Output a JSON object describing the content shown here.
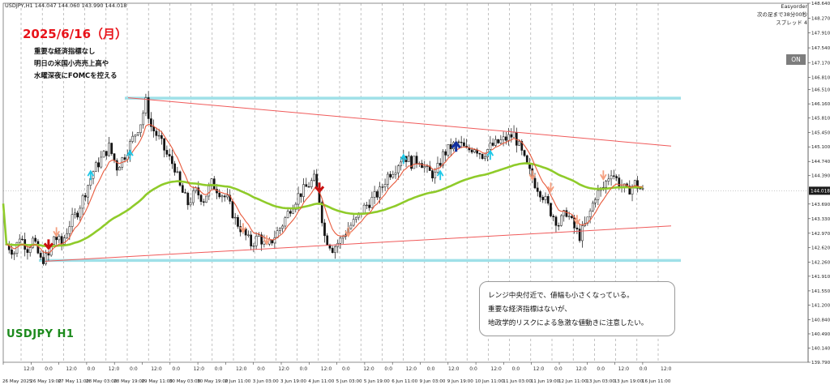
{
  "chart_data": {
    "type": "candlestick",
    "symbol_header": "USDJPY,H1  144.047 144.060 143.990 144.018",
    "heading": "2025/6/16（月）",
    "memo": [
      "重要な経済指標なし",
      "明日の米国小売売上高や",
      "水曜深夜にFOMCを控える"
    ],
    "symbol_label": "USDJPY H1",
    "note": [
      "レンジ中央付近で、値幅も小さくなっている。",
      "重要な経済指標はないが、",
      "地政学的リスクによる急激な値動きに注意したい。"
    ],
    "ea_label": "Easyorder",
    "ea_lines": [
      "次の足まで38分00秒",
      "スプレッド 4"
    ],
    "on_label": "ON",
    "current_price": "144.018",
    "ylim": [
      139.79,
      148.64
    ],
    "y_ticks": [
      "148.640",
      "148.270",
      "147.910",
      "147.540",
      "147.170",
      "146.810",
      "146.510",
      "146.160",
      "145.810",
      "145.450",
      "145.100",
      "144.740",
      "144.390",
      "144.018",
      "143.690",
      "143.330",
      "142.970",
      "142.620",
      "142.260",
      "141.910",
      "141.550",
      "141.200",
      "140.840",
      "140.490",
      "140.140",
      "139.790"
    ],
    "x_labels": [
      "26 May 2025",
      "26 May 19:00",
      "27 May 11:00",
      "28 May 03:00",
      "28 May 19:00",
      "29 May 11:00",
      "30 May 03:00",
      "30 May 19:00",
      "2 Jun 11:00",
      "3 Jun 03:00",
      "3 Jun 19:00",
      "4 Jun 11:00",
      "5 Jun 03:00",
      "5 Jun 19:00",
      "6 Jun 11:00",
      "9 Jun 03:00",
      "9 Jun 19:00",
      "10 Jun 11:00",
      "11 Jun 03:00",
      "11 Jun 19:00",
      "12 Jun 11:00",
      "13 Jun 03:00",
      "13 Jun 19:00",
      "16 Jun 11:00"
    ],
    "sep_labels": [
      "12:0",
      "0:0",
      "12:0",
      "0:0",
      "12:0",
      "0:0",
      "12:0",
      "0:0",
      "12:0",
      "0:0",
      "12:0",
      "0:0",
      "12:0",
      "0:0",
      "12:0",
      "0:0",
      "12:0",
      "0:0",
      "12:0",
      "0:0",
      "12:0",
      "0:0",
      "12:0",
      "0:0",
      "12:0",
      "0:0",
      "12:0",
      "0:0",
      "12:0",
      "0:0",
      "12:0"
    ],
    "levels": [
      146.3,
      142.3
    ],
    "trendlines": [
      {
        "from": [
          "28 May 19:00",
          146.31
        ],
        "to": [
          "16 Jun 12:00",
          145.12
        ]
      },
      {
        "from": [
          "26 May 19:00",
          142.28
        ],
        "to": [
          "16 Jun 12:00",
          143.15
        ]
      }
    ],
    "close_path": [
      [
        0,
        142.7
      ],
      [
        3,
        142.5
      ],
      [
        5,
        142.9
      ],
      [
        8,
        142.6
      ],
      [
        10,
        142.8
      ],
      [
        13,
        142.3
      ],
      [
        16,
        142.4
      ],
      [
        18,
        142.9
      ],
      [
        21,
        142.7
      ],
      [
        24,
        143.2
      ],
      [
        27,
        143.5
      ],
      [
        30,
        144.0
      ],
      [
        33,
        144.5
      ],
      [
        36,
        144.8
      ],
      [
        39,
        145.1
      ],
      [
        42,
        144.6
      ],
      [
        45,
        144.9
      ],
      [
        48,
        145.3
      ],
      [
        51,
        145.7
      ],
      [
        53,
        146.2
      ],
      [
        55,
        145.6
      ],
      [
        58,
        145.3
      ],
      [
        61,
        144.9
      ],
      [
        64,
        144.6
      ],
      [
        66,
        144.1
      ],
      [
        69,
        143.7
      ],
      [
        72,
        144.0
      ],
      [
        75,
        143.8
      ],
      [
        78,
        144.2
      ],
      [
        81,
        144.0
      ],
      [
        84,
        143.8
      ],
      [
        87,
        143.3
      ],
      [
        90,
        143.0
      ],
      [
        93,
        142.7
      ],
      [
        96,
        142.9
      ],
      [
        99,
        142.6
      ],
      [
        102,
        142.9
      ],
      [
        105,
        143.2
      ],
      [
        108,
        143.6
      ],
      [
        111,
        143.9
      ],
      [
        114,
        144.1
      ],
      [
        117,
        144.3
      ],
      [
        119,
        143.8
      ],
      [
        121,
        142.9
      ],
      [
        124,
        142.6
      ],
      [
        127,
        142.8
      ],
      [
        130,
        143.1
      ],
      [
        133,
        143.3
      ],
      [
        136,
        143.6
      ],
      [
        139,
        143.8
      ],
      [
        142,
        144.0
      ],
      [
        145,
        144.4
      ],
      [
        148,
        144.6
      ],
      [
        151,
        144.9
      ],
      [
        154,
        144.7
      ],
      [
        157,
        144.8
      ],
      [
        160,
        144.5
      ],
      [
        163,
        144.4
      ],
      [
        166,
        144.9
      ],
      [
        169,
        145.1
      ],
      [
        172,
        145.2
      ],
      [
        175,
        145.0
      ],
      [
        178,
        145.1
      ],
      [
        181,
        144.9
      ],
      [
        184,
        145.1
      ],
      [
        187,
        145.2
      ],
      [
        190,
        145.3
      ],
      [
        193,
        145.4
      ],
      [
        195,
        145.1
      ],
      [
        198,
        144.6
      ],
      [
        201,
        144.2
      ],
      [
        204,
        143.9
      ],
      [
        207,
        143.5
      ],
      [
        210,
        143.2
      ],
      [
        213,
        143.5
      ],
      [
        216,
        143.1
      ],
      [
        218,
        142.9
      ],
      [
        221,
        143.3
      ],
      [
        224,
        143.9
      ],
      [
        227,
        144.1
      ],
      [
        230,
        144.5
      ],
      [
        233,
        144.2
      ],
      [
        236,
        144.0
      ],
      [
        239,
        144.2
      ],
      [
        242,
        144.0
      ]
    ],
    "signals": [
      {
        "t": 16,
        "p": 142.6,
        "kind": "down-big"
      },
      {
        "t": 19,
        "p": 142.9,
        "kind": "down"
      },
      {
        "t": 32,
        "p": 144.5,
        "kind": "up"
      },
      {
        "t": 47,
        "p": 145.0,
        "kind": "up"
      },
      {
        "t": 90,
        "p": 143.0,
        "kind": "down"
      },
      {
        "t": 99,
        "p": 142.7,
        "kind": "down"
      },
      {
        "t": 119,
        "p": 144.0,
        "kind": "down-big"
      },
      {
        "t": 130,
        "p": 142.9,
        "kind": "down"
      },
      {
        "t": 151,
        "p": 144.9,
        "kind": "up"
      },
      {
        "t": 165,
        "p": 144.5,
        "kind": "up"
      },
      {
        "t": 171,
        "p": 145.2,
        "kind": "up-big"
      },
      {
        "t": 184,
        "p": 145.0,
        "kind": "up"
      },
      {
        "t": 200,
        "p": 144.3,
        "kind": "down"
      },
      {
        "t": 207,
        "p": 144.0,
        "kind": "down"
      },
      {
        "t": 217,
        "p": 143.2,
        "kind": "down"
      },
      {
        "t": 227,
        "p": 144.3,
        "kind": "down"
      }
    ],
    "grid": true,
    "colors": {
      "candle": "#111111",
      "ma_fast": "#e85a3c",
      "ma_slow": "#8fcb2a",
      "level": "#9fe0e8",
      "trendline": "#f05a5a",
      "up_signal": "#1ec8e8",
      "down_signal": "#f5a080",
      "big_down": "#c81010",
      "big_up": "#1030a0",
      "grid": "#9a9a9a",
      "price_tag_bg": "#1a1a1a"
    }
  }
}
